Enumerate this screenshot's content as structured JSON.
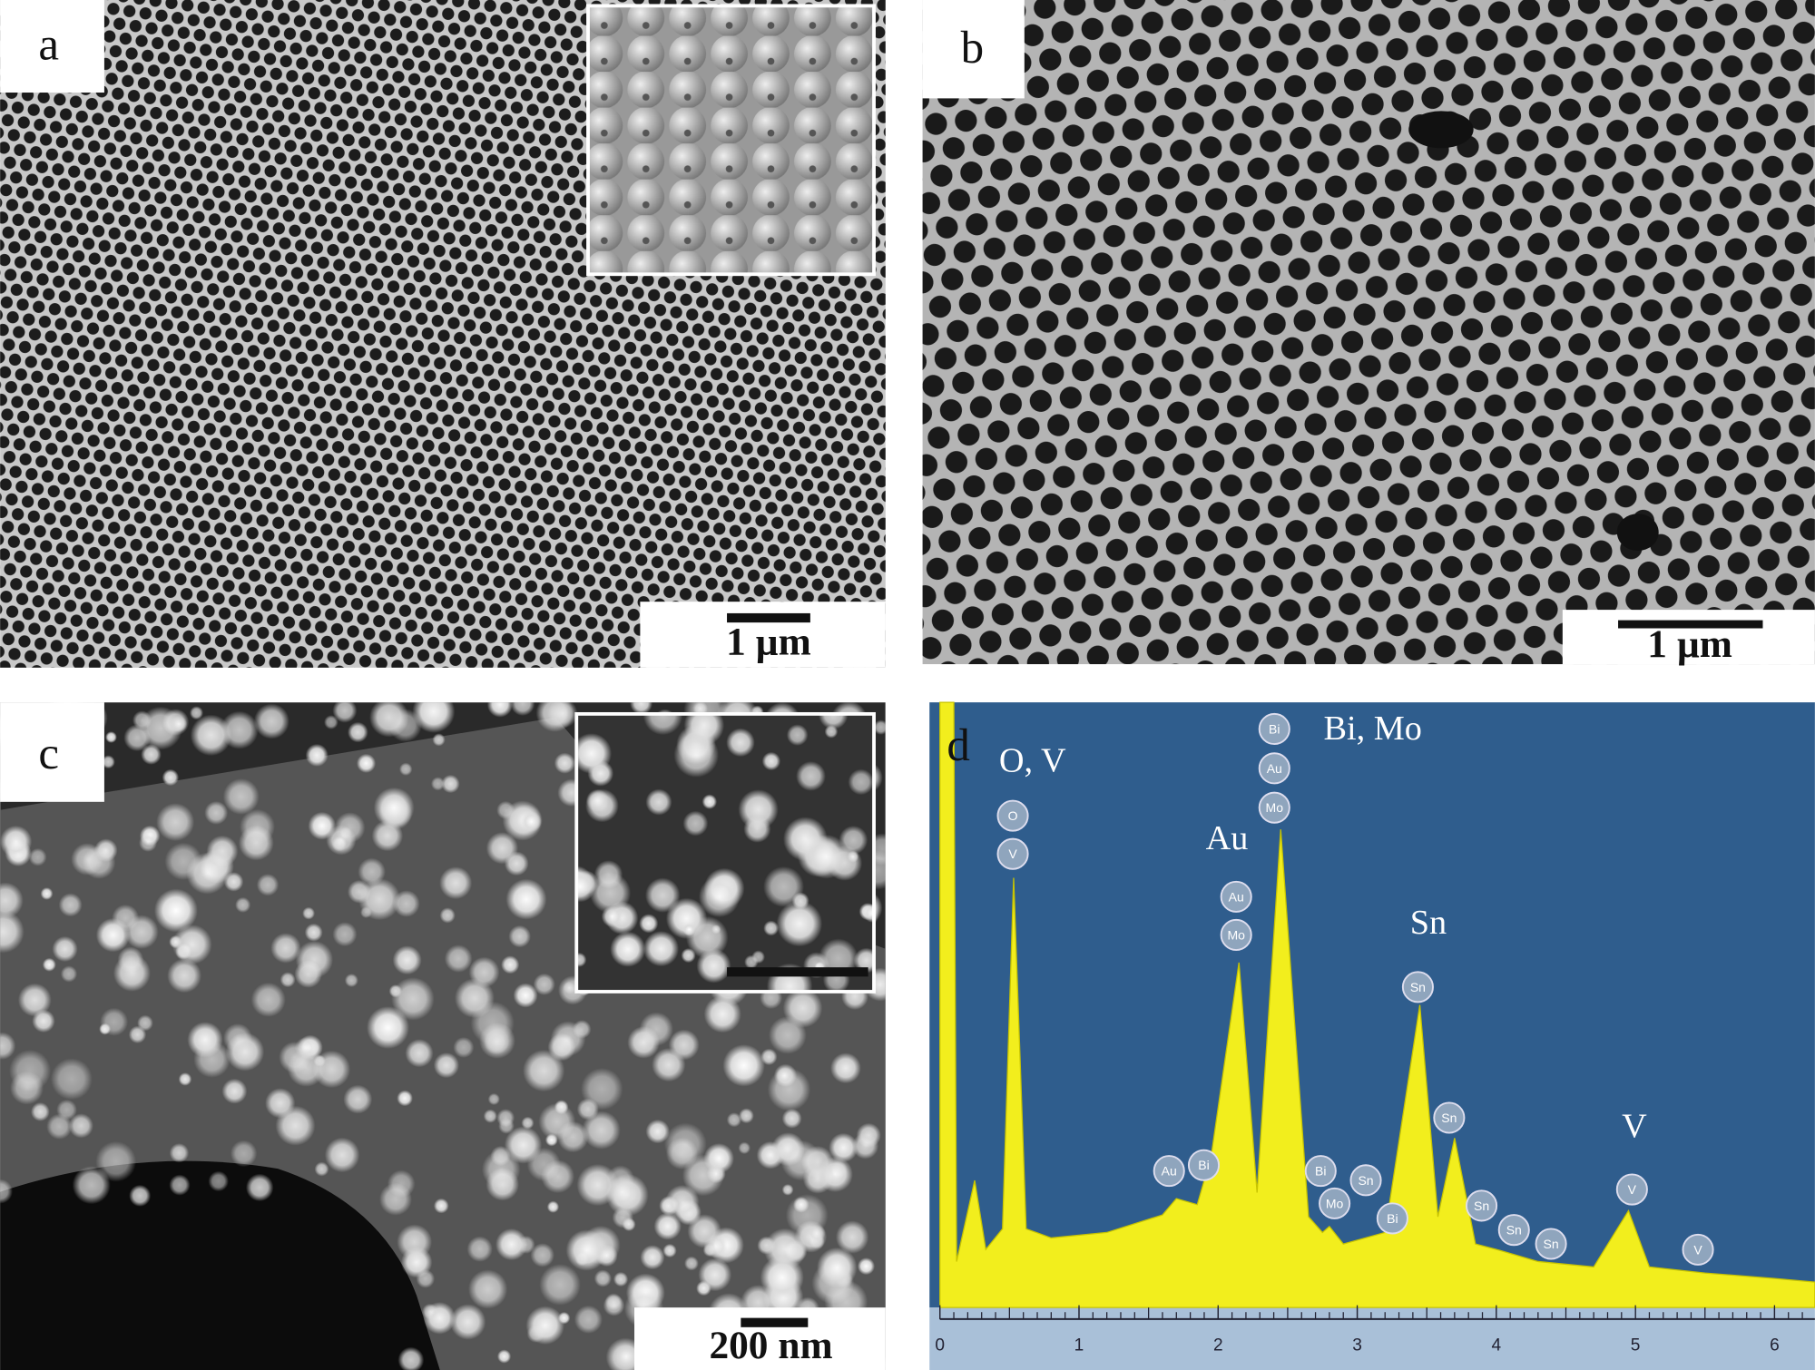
{
  "panels": [
    {
      "label": "a",
      "scale_bar": "1 µm"
    },
    {
      "label": "b",
      "scale_bar": "1 µm"
    },
    {
      "label": "c",
      "scale_bar": "200 nm"
    },
    {
      "label": "d"
    }
  ],
  "chart_data": {
    "type": "line",
    "color": "#f2ee1d",
    "x": [
      0,
      0.1,
      0.12,
      0.25,
      0.33,
      0.45,
      0.53,
      0.62,
      0.8,
      1.2,
      1.6,
      1.7,
      1.85,
      1.95,
      2.15,
      2.28,
      2.45,
      2.65,
      2.75,
      2.8,
      2.9,
      3.2,
      3.45,
      3.58,
      3.7,
      3.85,
      4.0,
      4.3,
      4.7,
      4.95,
      5.1,
      5.5,
      6.0,
      6.29
    ],
    "values": [
      100,
      100,
      7.6,
      21,
      9.6,
      13,
      71,
      13,
      11.5,
      12.4,
      15.3,
      18,
      17,
      25,
      57,
      19,
      79,
      15,
      12.4,
      13.4,
      10.5,
      12.4,
      50,
      15,
      28,
      10.5,
      9.6,
      7.6,
      6.7,
      16,
      6.7,
      5.7,
      4.8,
      4.2
    ],
    "xlim": [
      0,
      6.29
    ],
    "ylim": [
      0,
      100
    ],
    "xticks": [
      0,
      1,
      2,
      3,
      4,
      5,
      6
    ],
    "annotations": [
      "O, V",
      "Au",
      "Bi, Mo",
      "Sn",
      "V"
    ],
    "badges": [
      "O",
      "V",
      "Bi",
      "Au",
      "Mo",
      "Au",
      "Mo",
      "Au",
      "Bi",
      "Bi",
      "Mo",
      "Sn",
      "Bi",
      "Sn",
      "Sn",
      "Sn",
      "Sn",
      "Sn",
      "V",
      "V"
    ]
  }
}
